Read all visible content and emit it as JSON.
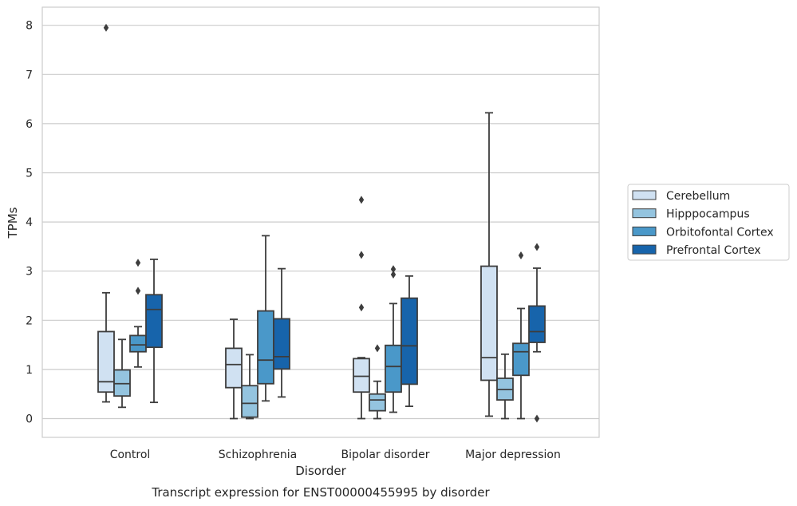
{
  "chart_data": {
    "type": "box",
    "title": "Transcript expression for ENST00000455995 by disorder",
    "xlabel": "Disorder",
    "ylabel": "TPMs",
    "ylim": [
      -0.4,
      8.35
    ],
    "yticks": [
      "0",
      "1",
      "2",
      "3",
      "4",
      "5",
      "6",
      "7",
      "8"
    ],
    "ytick_values": [
      0,
      1,
      2,
      3,
      4,
      5,
      6,
      7,
      8
    ],
    "grid": true,
    "legend_position": "right",
    "categories": [
      "Control",
      "Schizophrenia",
      "Bipolar disorder",
      "Major depression"
    ],
    "series": [
      {
        "name": "Cerebellum",
        "color": "#d0e1f2",
        "boxes": [
          {
            "whislo": 0.34,
            "q1": 0.54,
            "med": 0.75,
            "q3": 1.77,
            "whishi": 2.56,
            "fliers": [
              7.95
            ]
          },
          {
            "whislo": 0.0,
            "q1": 0.63,
            "med": 1.1,
            "q3": 1.43,
            "whishi": 2.02,
            "fliers": []
          },
          {
            "whislo": 0.0,
            "q1": 0.54,
            "med": 0.86,
            "q3": 1.22,
            "whishi": 1.24,
            "fliers": [
              2.26,
              3.33,
              4.45
            ]
          },
          {
            "whislo": 0.05,
            "q1": 0.78,
            "med": 1.24,
            "q3": 3.1,
            "whishi": 6.22,
            "fliers": []
          }
        ]
      },
      {
        "name": "Hipppocampus",
        "color": "#94c4df",
        "boxes": [
          {
            "whislo": 0.23,
            "q1": 0.46,
            "med": 0.71,
            "q3": 0.99,
            "whishi": 1.61,
            "fliers": []
          },
          {
            "whislo": 0.0,
            "q1": 0.03,
            "med": 0.31,
            "q3": 0.67,
            "whishi": 1.3,
            "fliers": []
          },
          {
            "whislo": 0.0,
            "q1": 0.16,
            "med": 0.38,
            "q3": 0.5,
            "whishi": 0.76,
            "fliers": [
              1.43
            ]
          },
          {
            "whislo": 0.0,
            "q1": 0.38,
            "med": 0.59,
            "q3": 0.82,
            "whishi": 1.31,
            "fliers": []
          }
        ]
      },
      {
        "name": "Orbitofontal Cortex",
        "color": "#4a98c9",
        "boxes": [
          {
            "whislo": 1.05,
            "q1": 1.36,
            "med": 1.5,
            "q3": 1.69,
            "whishi": 1.87,
            "fliers": [
              2.6,
              3.17
            ]
          },
          {
            "whislo": 0.36,
            "q1": 0.71,
            "med": 1.19,
            "q3": 2.19,
            "whishi": 3.72,
            "fliers": []
          },
          {
            "whislo": 0.13,
            "q1": 0.54,
            "med": 1.06,
            "q3": 1.49,
            "whishi": 2.34,
            "fliers": [
              2.93,
              3.04
            ]
          },
          {
            "whislo": 0.0,
            "q1": 0.88,
            "med": 1.36,
            "q3": 1.53,
            "whishi": 2.24,
            "fliers": [
              3.32
            ]
          }
        ]
      },
      {
        "name": "Prefrontal Cortex",
        "color": "#1764ab",
        "boxes": [
          {
            "whislo": 0.33,
            "q1": 1.45,
            "med": 2.22,
            "q3": 2.52,
            "whishi": 3.24,
            "fliers": []
          },
          {
            "whislo": 0.44,
            "q1": 1.01,
            "med": 1.26,
            "q3": 2.03,
            "whishi": 3.05,
            "fliers": []
          },
          {
            "whislo": 0.25,
            "q1": 0.7,
            "med": 1.48,
            "q3": 2.45,
            "whishi": 2.9,
            "fliers": []
          },
          {
            "whislo": 1.36,
            "q1": 1.55,
            "med": 1.77,
            "q3": 2.29,
            "whishi": 3.06,
            "fliers": [
              0.0,
              3.49
            ]
          }
        ]
      }
    ]
  }
}
